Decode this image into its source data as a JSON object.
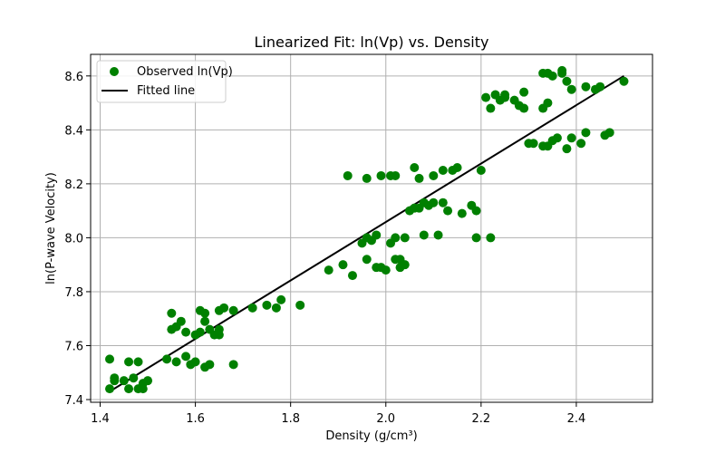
{
  "chart_data": {
    "type": "scatter",
    "title": "Linearized Fit: ln(Vp) vs. Density",
    "xlabel": "Density (g/cm³)",
    "ylabel": "ln(P-wave Velocity)",
    "xlim": [
      1.38,
      2.56
    ],
    "ylim": [
      7.39,
      8.68
    ],
    "xticks": [
      1.4,
      1.6,
      1.8,
      2.0,
      2.2,
      2.4
    ],
    "xtick_labels": [
      "1.4",
      "1.6",
      "1.8",
      "2.0",
      "2.2",
      "2.4"
    ],
    "yticks": [
      7.4,
      7.6,
      7.8,
      8.0,
      8.2,
      8.4,
      8.6
    ],
    "ytick_labels": [
      "7.4",
      "7.6",
      "7.8",
      "8.0",
      "8.2",
      "8.4",
      "8.6"
    ],
    "grid": true,
    "legend_position": "top-left",
    "series": [
      {
        "name": "Observed ln(Vp)",
        "kind": "scatter",
        "color": "#008000",
        "points": [
          [
            1.42,
            7.55
          ],
          [
            1.42,
            7.44
          ],
          [
            1.43,
            7.47
          ],
          [
            1.43,
            7.48
          ],
          [
            1.45,
            7.47
          ],
          [
            1.46,
            7.44
          ],
          [
            1.46,
            7.54
          ],
          [
            1.47,
            7.48
          ],
          [
            1.48,
            7.44
          ],
          [
            1.48,
            7.54
          ],
          [
            1.49,
            7.44
          ],
          [
            1.49,
            7.46
          ],
          [
            1.5,
            7.47
          ],
          [
            1.54,
            7.55
          ],
          [
            1.55,
            7.66
          ],
          [
            1.55,
            7.72
          ],
          [
            1.56,
            7.54
          ],
          [
            1.56,
            7.67
          ],
          [
            1.57,
            7.69
          ],
          [
            1.58,
            7.56
          ],
          [
            1.58,
            7.65
          ],
          [
            1.59,
            7.53
          ],
          [
            1.6,
            7.54
          ],
          [
            1.6,
            7.64
          ],
          [
            1.61,
            7.65
          ],
          [
            1.61,
            7.73
          ],
          [
            1.62,
            7.52
          ],
          [
            1.62,
            7.72
          ],
          [
            1.62,
            7.69
          ],
          [
            1.63,
            7.53
          ],
          [
            1.63,
            7.66
          ],
          [
            1.64,
            7.64
          ],
          [
            1.65,
            7.73
          ],
          [
            1.65,
            7.64
          ],
          [
            1.65,
            7.66
          ],
          [
            1.66,
            7.74
          ],
          [
            1.68,
            7.53
          ],
          [
            1.68,
            7.73
          ],
          [
            1.72,
            7.74
          ],
          [
            1.75,
            7.75
          ],
          [
            1.77,
            7.74
          ],
          [
            1.78,
            7.77
          ],
          [
            1.82,
            7.75
          ],
          [
            1.88,
            7.88
          ],
          [
            1.91,
            7.9
          ],
          [
            1.92,
            8.23
          ],
          [
            1.93,
            7.86
          ],
          [
            1.95,
            7.98
          ],
          [
            1.96,
            8.0
          ],
          [
            1.96,
            8.22
          ],
          [
            1.96,
            7.92
          ],
          [
            1.97,
            7.99
          ],
          [
            1.98,
            8.01
          ],
          [
            1.98,
            7.89
          ],
          [
            1.99,
            8.23
          ],
          [
            1.99,
            7.89
          ],
          [
            2.0,
            7.88
          ],
          [
            2.01,
            8.23
          ],
          [
            2.01,
            7.98
          ],
          [
            2.02,
            8.0
          ],
          [
            2.02,
            7.92
          ],
          [
            2.02,
            8.23
          ],
          [
            2.03,
            7.92
          ],
          [
            2.03,
            7.89
          ],
          [
            2.04,
            8.0
          ],
          [
            2.04,
            7.9
          ],
          [
            2.05,
            8.1
          ],
          [
            2.06,
            8.26
          ],
          [
            2.06,
            8.11
          ],
          [
            2.07,
            8.22
          ],
          [
            2.07,
            8.11
          ],
          [
            2.08,
            8.13
          ],
          [
            2.08,
            8.01
          ],
          [
            2.09,
            8.12
          ],
          [
            2.1,
            8.13
          ],
          [
            2.1,
            8.23
          ],
          [
            2.11,
            8.01
          ],
          [
            2.12,
            8.25
          ],
          [
            2.12,
            8.13
          ],
          [
            2.13,
            8.1
          ],
          [
            2.14,
            8.25
          ],
          [
            2.15,
            8.26
          ],
          [
            2.16,
            8.09
          ],
          [
            2.18,
            8.12
          ],
          [
            2.19,
            8.0
          ],
          [
            2.19,
            8.1
          ],
          [
            2.2,
            8.25
          ],
          [
            2.21,
            8.52
          ],
          [
            2.22,
            8.0
          ],
          [
            2.22,
            8.48
          ],
          [
            2.23,
            8.53
          ],
          [
            2.23,
            8.53
          ],
          [
            2.24,
            8.51
          ],
          [
            2.25,
            8.53
          ],
          [
            2.25,
            8.52
          ],
          [
            2.27,
            8.51
          ],
          [
            2.28,
            8.49
          ],
          [
            2.29,
            8.54
          ],
          [
            2.29,
            8.48
          ],
          [
            2.3,
            8.35
          ],
          [
            2.31,
            8.35
          ],
          [
            2.33,
            8.61
          ],
          [
            2.33,
            8.48
          ],
          [
            2.33,
            8.34
          ],
          [
            2.34,
            8.34
          ],
          [
            2.34,
            8.61
          ],
          [
            2.34,
            8.5
          ],
          [
            2.35,
            8.6
          ],
          [
            2.35,
            8.36
          ],
          [
            2.36,
            8.37
          ],
          [
            2.37,
            8.61
          ],
          [
            2.37,
            8.62
          ],
          [
            2.38,
            8.58
          ],
          [
            2.38,
            8.33
          ],
          [
            2.39,
            8.55
          ],
          [
            2.39,
            8.37
          ],
          [
            2.41,
            8.35
          ],
          [
            2.42,
            8.56
          ],
          [
            2.42,
            8.39
          ],
          [
            2.44,
            8.55
          ],
          [
            2.45,
            8.56
          ],
          [
            2.46,
            8.38
          ],
          [
            2.47,
            8.39
          ],
          [
            2.5,
            8.58
          ]
        ]
      },
      {
        "name": "Fitted line",
        "kind": "line",
        "color": "#000000",
        "x": [
          1.42,
          2.5
        ],
        "y": [
          7.43,
          8.6
        ]
      }
    ]
  }
}
